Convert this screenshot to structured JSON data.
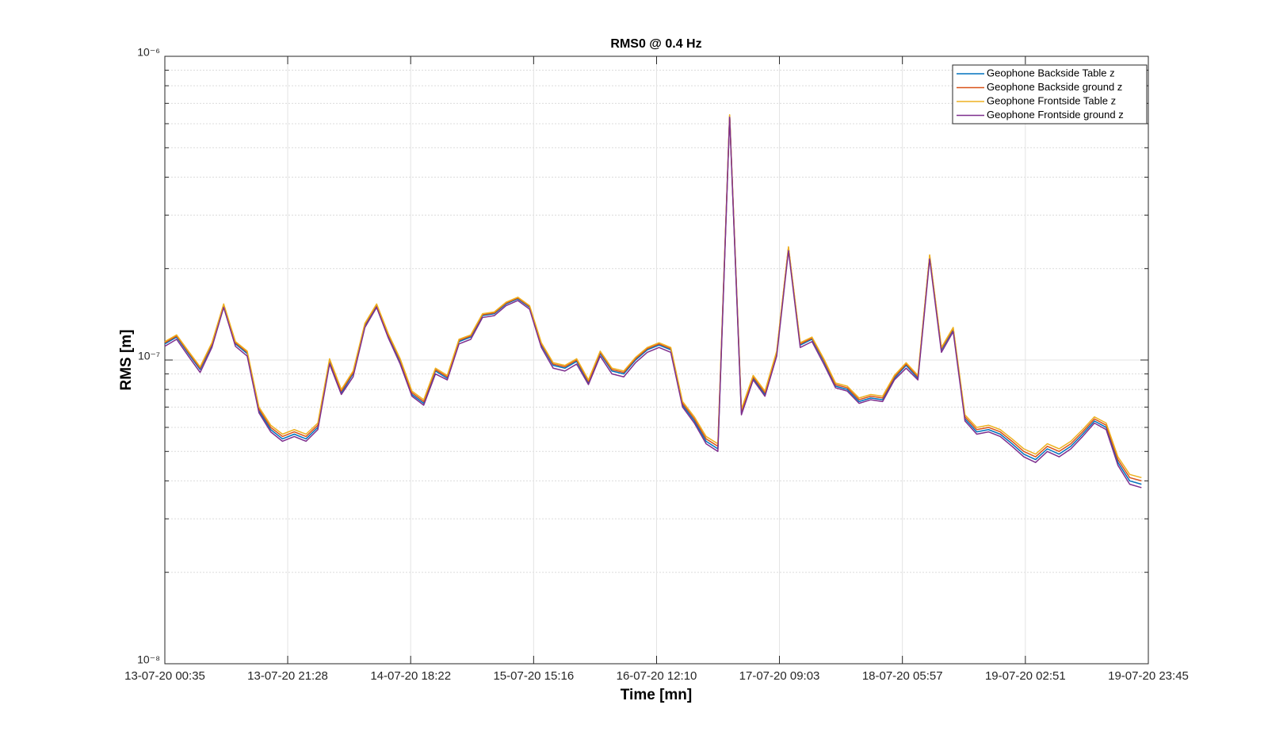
{
  "chart_data": {
    "type": "line",
    "title": "RMS0 @ 0.4 Hz",
    "x_label": "Time [mn]",
    "y_label": "RMS [m]",
    "y_scale": "log",
    "grid": true,
    "minor_grid": true,
    "legend_position": "upper right",
    "xlim": [
      "13-07-20 00:35",
      "19-07-20 23:45"
    ],
    "xticks": [
      "13-07-20 00:35",
      "13-07-20 21:28",
      "14-07-20 18:22",
      "15-07-20 15:16",
      "16-07-20 12:10",
      "17-07-20 09:03",
      "18-07-20 05:57",
      "19-07-20 02:51",
      "19-07-20 23:45"
    ],
    "ylim": [
      1e-08,
      1e-06
    ],
    "yticks": [
      {
        "value": 1e-08,
        "label": "10⁻⁸"
      },
      {
        "value": 1e-07,
        "label": "10⁻⁷"
      },
      {
        "value": 1e-06,
        "label": "10⁻⁶"
      }
    ],
    "x": [
      "13-07-20 00:35",
      "13-07-20 02:35",
      "13-07-20 04:35",
      "13-07-20 06:35",
      "13-07-20 08:35",
      "13-07-20 10:35",
      "13-07-20 12:35",
      "13-07-20 14:35",
      "13-07-20 16:35",
      "13-07-20 18:35",
      "13-07-20 20:35",
      "13-07-20 22:35",
      "14-07-20 00:35",
      "14-07-20 02:35",
      "14-07-20 04:35",
      "14-07-20 06:35",
      "14-07-20 08:35",
      "14-07-20 10:35",
      "14-07-20 12:35",
      "14-07-20 14:35",
      "14-07-20 16:35",
      "14-07-20 18:35",
      "14-07-20 20:35",
      "14-07-20 22:35",
      "15-07-20 00:35",
      "15-07-20 02:35",
      "15-07-20 04:35",
      "15-07-20 06:35",
      "15-07-20 08:35",
      "15-07-20 10:35",
      "15-07-20 12:35",
      "15-07-20 14:35",
      "15-07-20 16:35",
      "15-07-20 18:35",
      "15-07-20 20:35",
      "15-07-20 22:35",
      "16-07-20 00:35",
      "16-07-20 02:35",
      "16-07-20 04:35",
      "16-07-20 06:35",
      "16-07-20 08:35",
      "16-07-20 10:35",
      "16-07-20 12:35",
      "16-07-20 14:35",
      "16-07-20 16:35",
      "16-07-20 18:35",
      "16-07-20 20:35",
      "16-07-20 22:35",
      "17-07-20 00:35",
      "17-07-20 02:35",
      "17-07-20 04:35",
      "17-07-20 06:35",
      "17-07-20 08:35",
      "17-07-20 10:35",
      "17-07-20 12:35",
      "17-07-20 14:35",
      "17-07-20 16:35",
      "17-07-20 18:35",
      "17-07-20 20:35",
      "17-07-20 22:35",
      "18-07-20 00:35",
      "18-07-20 02:35",
      "18-07-20 04:35",
      "18-07-20 06:35",
      "18-07-20 08:35",
      "18-07-20 10:35",
      "18-07-20 12:35",
      "18-07-20 14:35",
      "18-07-20 16:35",
      "18-07-20 18:35",
      "18-07-20 20:35",
      "18-07-20 22:35",
      "19-07-20 00:35",
      "19-07-20 02:35",
      "19-07-20 04:35",
      "19-07-20 06:35",
      "19-07-20 08:35",
      "19-07-20 10:35",
      "19-07-20 12:35",
      "19-07-20 14:35",
      "19-07-20 16:35",
      "19-07-20 18:35",
      "19-07-20 20:35",
      "19-07-20 22:35"
    ],
    "series": [
      {
        "name": "Geophone Backside Table z",
        "color": "#0072BD",
        "values": [
          1.13e-07,
          1.19e-07,
          1.05e-07,
          9.3e-08,
          1.12e-07,
          1.51e-07,
          1.13e-07,
          1.05e-07,
          6.8e-08,
          5.9e-08,
          5.5e-08,
          5.7e-08,
          5.5e-08,
          6e-08,
          9.9e-08,
          7.8e-08,
          9e-08,
          1.3e-07,
          1.51e-07,
          1.2e-07,
          9.9e-08,
          7.7e-08,
          7.2e-08,
          9.2e-08,
          8.7e-08,
          1.15e-07,
          1.19e-07,
          1.4e-07,
          1.42e-07,
          1.53e-07,
          1.59e-07,
          1.49e-07,
          1.12e-07,
          9.6e-08,
          9.4e-08,
          9.9e-08,
          8.4e-08,
          1.05e-07,
          9.2e-08,
          9e-08,
          1e-07,
          1.08e-07,
          1.12e-07,
          1.08e-07,
          7.1e-08,
          6.3e-08,
          5.4e-08,
          5.1e-08,
          6.36e-07,
          6.7e-08,
          8.7e-08,
          7.7e-08,
          1.05e-07,
          2.33e-07,
          1.12e-07,
          1.17e-07,
          9.9e-08,
          8.2e-08,
          8e-08,
          7.3e-08,
          7.5e-08,
          7.4e-08,
          8.7e-08,
          9.6e-08,
          8.7e-08,
          2.19e-07,
          1.08e-07,
          1.26e-07,
          6.4e-08,
          5.8e-08,
          5.9e-08,
          5.7e-08,
          5.3e-08,
          4.9e-08,
          4.7e-08,
          5.1e-08,
          4.9e-08,
          5.2e-08,
          5.7e-08,
          6.3e-08,
          6e-08,
          4.6e-08,
          4e-08,
          3.9e-08
        ]
      },
      {
        "name": "Geophone Backside ground z",
        "color": "#D95319",
        "values": [
          1.14e-07,
          1.2e-07,
          1.06e-07,
          9.4e-08,
          1.13e-07,
          1.52e-07,
          1.14e-07,
          1.06e-07,
          6.9e-08,
          6e-08,
          5.6e-08,
          5.8e-08,
          5.6e-08,
          6.1e-08,
          1e-07,
          7.9e-08,
          9.1e-08,
          1.31e-07,
          1.52e-07,
          1.21e-07,
          1e-07,
          7.8e-08,
          7.3e-08,
          9.3e-08,
          8.8e-08,
          1.16e-07,
          1.2e-07,
          1.41e-07,
          1.43e-07,
          1.54e-07,
          1.6e-07,
          1.5e-07,
          1.13e-07,
          9.7e-08,
          9.5e-08,
          1e-07,
          8.5e-08,
          1.06e-07,
          9.3e-08,
          9.1e-08,
          1.01e-07,
          1.09e-07,
          1.13e-07,
          1.09e-07,
          7.2e-08,
          6.4e-08,
          5.5e-08,
          5.2e-08,
          6.4e-07,
          6.8e-08,
          8.8e-08,
          7.8e-08,
          1.06e-07,
          2.35e-07,
          1.13e-07,
          1.18e-07,
          1e-07,
          8.3e-08,
          8.1e-08,
          7.4e-08,
          7.6e-08,
          7.5e-08,
          8.8e-08,
          9.7e-08,
          8.8e-08,
          2.21e-07,
          1.09e-07,
          1.27e-07,
          6.5e-08,
          5.9e-08,
          6e-08,
          5.8e-08,
          5.4e-08,
          5e-08,
          4.8e-08,
          5.2e-08,
          5e-08,
          5.3e-08,
          5.8e-08,
          6.4e-08,
          6.1e-08,
          4.7e-08,
          4.1e-08,
          4e-08
        ]
      },
      {
        "name": "Geophone Frontside Table z",
        "color": "#EDB120",
        "values": [
          1.15e-07,
          1.21e-07,
          1.07e-07,
          9.5e-08,
          1.14e-07,
          1.53e-07,
          1.15e-07,
          1.07e-07,
          7e-08,
          6.1e-08,
          5.7e-08,
          5.9e-08,
          5.7e-08,
          6.2e-08,
          1.01e-07,
          8e-08,
          9.2e-08,
          1.32e-07,
          1.53e-07,
          1.22e-07,
          1.01e-07,
          7.9e-08,
          7.4e-08,
          9.4e-08,
          8.9e-08,
          1.17e-07,
          1.21e-07,
          1.42e-07,
          1.44e-07,
          1.55e-07,
          1.61e-07,
          1.51e-07,
          1.14e-07,
          9.8e-08,
          9.6e-08,
          1.01e-07,
          8.6e-08,
          1.07e-07,
          9.4e-08,
          9.2e-08,
          1.02e-07,
          1.1e-07,
          1.14e-07,
          1.1e-07,
          7.3e-08,
          6.5e-08,
          5.6e-08,
          5.3e-08,
          6.42e-07,
          6.9e-08,
          8.9e-08,
          7.9e-08,
          1.07e-07,
          2.36e-07,
          1.14e-07,
          1.19e-07,
          1.01e-07,
          8.4e-08,
          8.2e-08,
          7.5e-08,
          7.7e-08,
          7.6e-08,
          8.9e-08,
          9.8e-08,
          8.9e-08,
          2.22e-07,
          1.1e-07,
          1.28e-07,
          6.6e-08,
          6e-08,
          6.1e-08,
          5.9e-08,
          5.5e-08,
          5.1e-08,
          4.9e-08,
          5.3e-08,
          5.1e-08,
          5.4e-08,
          5.9e-08,
          6.5e-08,
          6.2e-08,
          4.8e-08,
          4.2e-08,
          4.1e-08
        ]
      },
      {
        "name": "Geophone Frontside ground z",
        "color": "#7E2F8E",
        "values": [
          1.11e-07,
          1.17e-07,
          1.03e-07,
          9.1e-08,
          1.1e-07,
          1.49e-07,
          1.11e-07,
          1.03e-07,
          6.7e-08,
          5.8e-08,
          5.4e-08,
          5.6e-08,
          5.4e-08,
          5.9e-08,
          9.7e-08,
          7.7e-08,
          8.8e-08,
          1.28e-07,
          1.49e-07,
          1.18e-07,
          9.7e-08,
          7.6e-08,
          7.1e-08,
          9e-08,
          8.6e-08,
          1.13e-07,
          1.17e-07,
          1.38e-07,
          1.4e-07,
          1.51e-07,
          1.57e-07,
          1.47e-07,
          1.1e-07,
          9.4e-08,
          9.2e-08,
          9.7e-08,
          8.3e-08,
          1.03e-07,
          9e-08,
          8.8e-08,
          9.8e-08,
          1.06e-07,
          1.1e-07,
          1.06e-07,
          7e-08,
          6.2e-08,
          5.3e-08,
          5e-08,
          6.3e-07,
          6.6e-08,
          8.6e-08,
          7.6e-08,
          1.03e-07,
          2.29e-07,
          1.1e-07,
          1.15e-07,
          9.7e-08,
          8.1e-08,
          7.9e-08,
          7.2e-08,
          7.4e-08,
          7.3e-08,
          8.6e-08,
          9.4e-08,
          8.6e-08,
          2.15e-07,
          1.06e-07,
          1.24e-07,
          6.3e-08,
          5.7e-08,
          5.8e-08,
          5.6e-08,
          5.2e-08,
          4.8e-08,
          4.6e-08,
          5e-08,
          4.8e-08,
          5.1e-08,
          5.6e-08,
          6.2e-08,
          5.9e-08,
          4.5e-08,
          3.9e-08,
          3.8e-08
        ]
      }
    ]
  }
}
